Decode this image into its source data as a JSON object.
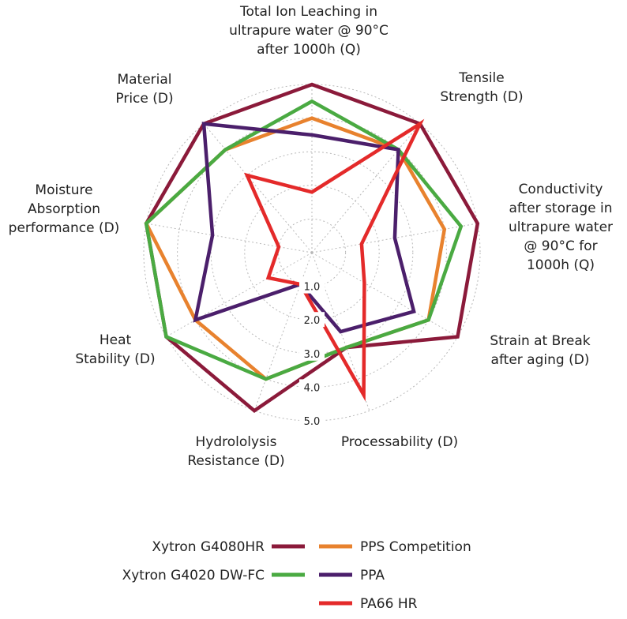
{
  "chart_data": {
    "type": "radar",
    "axes": [
      [
        "Total Ion Leaching in",
        "ultrapure water @ 90°C",
        "after 1000h (Q)"
      ],
      [
        "Tensile",
        "Strength (D)"
      ],
      [
        "Conductivity",
        "after storage in",
        "ultrapure water",
        "@ 90°C for",
        "1000h (Q)"
      ],
      [
        "Strain at Break",
        "after aging (D)"
      ],
      [
        "Processability (D)"
      ],
      [
        "Hydrololysis",
        "Resistance (D)"
      ],
      [
        "Heat",
        "Stability (D)"
      ],
      [
        "Moisture",
        "Absorption",
        "performance (D)"
      ],
      [
        "Material",
        "Price (D)"
      ]
    ],
    "ticks": [
      "1.0",
      "2.0",
      "3.0",
      "4.0",
      "5.0"
    ],
    "rlim": [
      0,
      5
    ],
    "grid": true,
    "legend_position": "bottom",
    "series": [
      {
        "name": "Xytron G4080HR",
        "color": "#8b1a3a",
        "values": [
          5.0,
          5.0,
          5.0,
          5.0,
          3.0,
          5.0,
          5.0,
          5.0,
          5.0
        ]
      },
      {
        "name": "PPS Competition",
        "color": "#e8822e",
        "values": [
          4.0,
          4.0,
          4.0,
          4.0,
          3.0,
          4.0,
          4.0,
          5.0,
          4.0
        ]
      },
      {
        "name": "Xytron G4020 DW-FC",
        "color": "#4aaa42",
        "values": [
          4.5,
          4.0,
          4.5,
          4.0,
          3.0,
          4.0,
          5.0,
          5.0,
          4.0
        ]
      },
      {
        "name": "PPA",
        "color": "#4b1f6b",
        "values": [
          3.5,
          4.0,
          2.5,
          3.5,
          2.5,
          1.0,
          4.0,
          3.0,
          5.0
        ]
      },
      {
        "name": "PA66 HR",
        "color": "#e42a2a",
        "values": [
          1.8,
          5.0,
          1.5,
          1.8,
          4.5,
          1.0,
          1.5,
          1.0,
          3.0
        ]
      }
    ],
    "legend_order": [
      "Xytron G4080HR",
      "PPS Competition",
      "Xytron G4020 DW-FC",
      "PPA",
      "PA66 HR"
    ]
  }
}
